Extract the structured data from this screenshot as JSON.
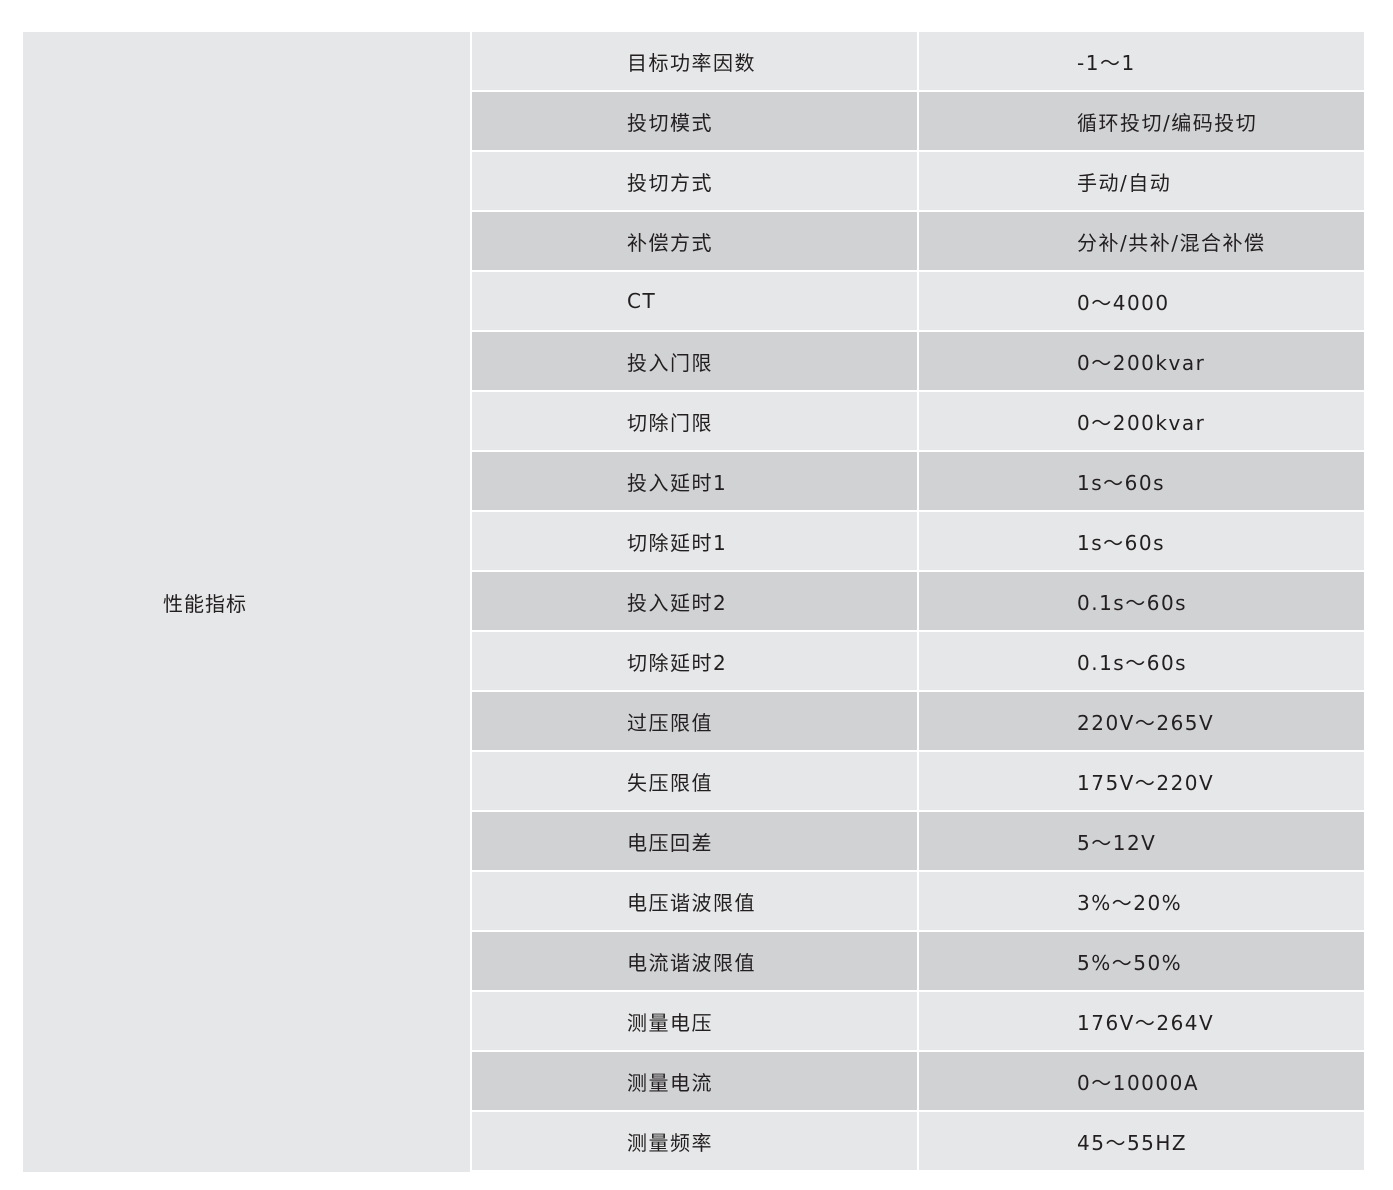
{
  "table": {
    "group_label": "性能指标",
    "colors": {
      "row_light": "#e6e7e8",
      "row_dark": "#d1d2d4",
      "text": "#231f20"
    },
    "rows": [
      {
        "param": "目标功率因数",
        "value": "-1～1"
      },
      {
        "param": "投切模式",
        "value": "循环投切/编码投切"
      },
      {
        "param": "投切方式",
        "value": "手动/自动"
      },
      {
        "param": "补偿方式",
        "value": "分补/共补/混合补偿"
      },
      {
        "param": "CT",
        "value": "0～4000"
      },
      {
        "param": "投入门限",
        "value": "0～200kvar"
      },
      {
        "param": "切除门限",
        "value": "0～200kvar"
      },
      {
        "param": "投入延时1",
        "value": "1s～60s"
      },
      {
        "param": "切除延时1",
        "value": "1s～60s"
      },
      {
        "param": "投入延时2",
        "value": "0.1s～60s"
      },
      {
        "param": "切除延时2",
        "value": "0.1s～60s"
      },
      {
        "param": "过压限值",
        "value": "220V～265V"
      },
      {
        "param": "失压限值",
        "value": "175V～220V"
      },
      {
        "param": "电压回差",
        "value": "5～12V"
      },
      {
        "param": "电压谐波限值",
        "value": "3%～20%"
      },
      {
        "param": "电流谐波限值",
        "value": "5%～50%"
      },
      {
        "param": "测量电压",
        "value": "176V～264V"
      },
      {
        "param": "测量电流",
        "value": "0～10000A"
      },
      {
        "param": "测量频率",
        "value": "45～55HZ"
      }
    ]
  }
}
